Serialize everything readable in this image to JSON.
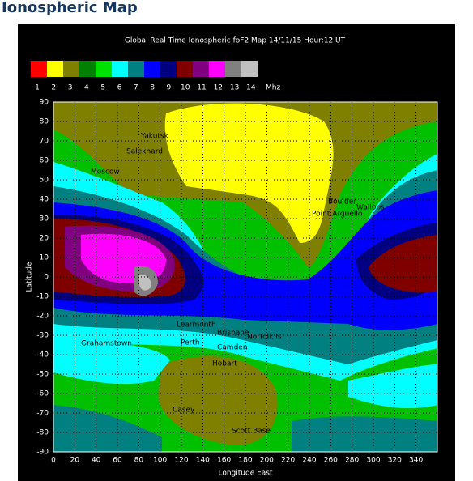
{
  "header": {
    "title": "Ionospheric Map"
  },
  "map": {
    "title": "Global Real Time Ionospheric foF2 Map  14/11/15 Hour:12 UT",
    "scale": {
      "labels": [
        1,
        2,
        3,
        4,
        5,
        6,
        7,
        8,
        9,
        10,
        11,
        12,
        13,
        14
      ],
      "unit": "Mhz",
      "colors": [
        "#ff0000",
        "#ffff00",
        "#808000",
        "#008000",
        "#00e000",
        "#00ffff",
        "#008080",
        "#0000ff",
        "#000080",
        "#800000",
        "#800080",
        "#ff00ff",
        "#808080",
        "#c0c0c0"
      ]
    },
    "ylabel": "Latitude",
    "xlabel": "Longitude East",
    "yticks": [
      90,
      80,
      70,
      60,
      50,
      40,
      30,
      20,
      10,
      0,
      -10,
      -20,
      -30,
      -40,
      -50,
      -60,
      -70,
      -80,
      -90
    ],
    "xticks": [
      0,
      20,
      40,
      60,
      80,
      100,
      120,
      140,
      160,
      180,
      200,
      220,
      240,
      260,
      280,
      300,
      320,
      340
    ],
    "stations": [
      "Yakutsk",
      "Salekhard",
      "Moscow",
      "Boulder",
      "Point Arguello",
      "Wallops",
      "Learmonth",
      "Brisbane",
      "Norfolk Is",
      "Perth",
      "Camden",
      "Hobart",
      "Casey",
      "Scott Base",
      "Grahamstown"
    ]
  }
}
